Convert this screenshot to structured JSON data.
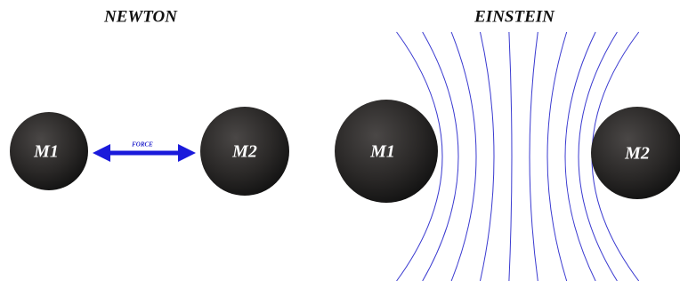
{
  "newton": {
    "title": "NEWTON",
    "mass_1": "M1",
    "mass_2": "M2",
    "arrow_label": "FORCE"
  },
  "einstein": {
    "title": "EINSTEIN",
    "mass_1": "M1",
    "mass_2": "M2"
  }
}
